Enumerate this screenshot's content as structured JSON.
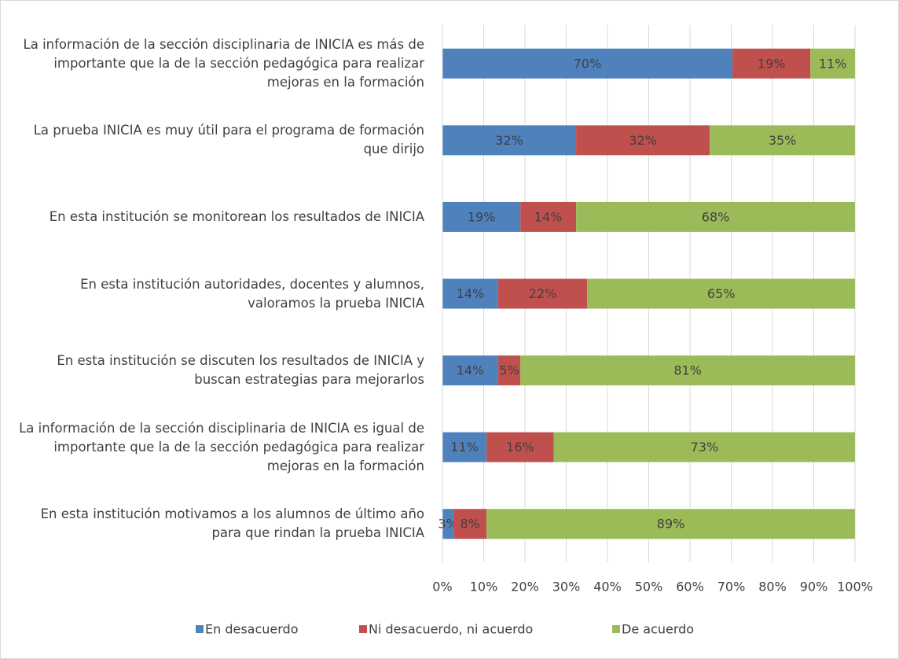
{
  "chart_data": {
    "type": "stacked-bar-horizontal",
    "categories": [
      "La información de la sección disciplinaria de INICIA es más de importante que la de la sección pedagógica para realizar mejoras en la formación",
      "La prueba INICIA es muy útil para el programa de formación que dirijo",
      "En esta institución se monitorean los resultados de INICIA",
      "En esta institución autoridades, docentes y alumnos, valoramos la prueba INICIA",
      "En esta institución se discuten los resultados de INICIA y buscan estrategias para mejorarlos",
      "La información de la sección disciplinaria de INICIA es igual de importante que la de la sección pedagógica para realizar mejoras en la formación",
      "En esta institución motivamos a los alumnos de último año para que rindan la prueba INICIA"
    ],
    "series": [
      {
        "name": "En desacuerdo",
        "color": "#4f81bd",
        "values": [
          70.3,
          32.4,
          18.9,
          13.5,
          13.5,
          10.7,
          2.7
        ],
        "value_labels": [
          "70%",
          "32%",
          "19%",
          "14%",
          "14%",
          "11%",
          "3%"
        ]
      },
      {
        "name": "Ni desacuerdo, ni acuerdo",
        "color": "#c0504d",
        "values": [
          18.9,
          32.4,
          13.5,
          21.6,
          5.4,
          16.3,
          8.0
        ],
        "value_labels": [
          "19%",
          "32%",
          "14%",
          "22%",
          "5%",
          "16%",
          "8%"
        ]
      },
      {
        "name": "De acuerdo",
        "color": "#9bbb59",
        "values": [
          10.8,
          35.2,
          67.6,
          64.9,
          81.1,
          73.0,
          89.3
        ],
        "value_labels": [
          "11%",
          "35%",
          "68%",
          "65%",
          "81%",
          "73%",
          "89%"
        ]
      }
    ],
    "xlim": [
      0,
      100
    ],
    "xticks": [
      {
        "value": 0,
        "label": "0%"
      },
      {
        "value": 10,
        "label": "10%"
      },
      {
        "value": 20,
        "label": "20%"
      },
      {
        "value": 30,
        "label": "30%"
      },
      {
        "value": 40,
        "label": "40%"
      },
      {
        "value": 50,
        "label": "50%"
      },
      {
        "value": 60,
        "label": "60%"
      },
      {
        "value": 70,
        "label": "70%"
      },
      {
        "value": 80,
        "label": "80%"
      },
      {
        "value": 90,
        "label": "90%"
      },
      {
        "value": 100,
        "label": "100%"
      }
    ],
    "grid": true,
    "legend": "bottom"
  }
}
